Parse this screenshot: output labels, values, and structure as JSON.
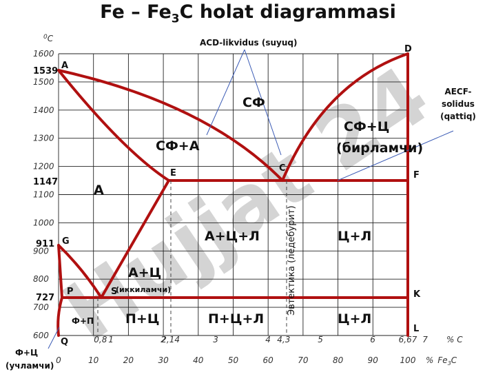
{
  "title": {
    "main": "Fe – Fe",
    "sub": "3",
    "rest": "C holat diagrammasi"
  },
  "temp_unit": {
    "sup": "0",
    "base": "C"
  },
  "watermark": "Hujjat 24",
  "y_ticks": [
    "1600",
    "1500",
    "1400",
    "1300",
    "1200",
    "1100",
    "1000",
    "900",
    "800",
    "700",
    "600"
  ],
  "y_special": [
    "1539",
    "1147",
    "911",
    "727"
  ],
  "c_axis": {
    "ticks": [
      "0,8",
      "1",
      "2",
      "2,14",
      "3",
      "4",
      "4,3",
      "5",
      "6",
      "6,67",
      "7"
    ],
    "unit": "% C"
  },
  "fe3c_axis": {
    "ticks": [
      "0",
      "10",
      "20",
      "30",
      "40",
      "50",
      "60",
      "70",
      "80",
      "90",
      "100"
    ],
    "unit_pct": "%",
    "unit_base": "Fe",
    "unit_sub": "3",
    "unit_rest": "C"
  },
  "points": {
    "A": "A",
    "D": "D",
    "E": "E",
    "C": "C",
    "F": "F",
    "G": "G",
    "P": "P",
    "S": "S",
    "K": "K",
    "L": "L",
    "Q": "Q"
  },
  "phases": {
    "sf": "СФ",
    "sf_a": "СФ+А",
    "sf_c": "СФ+Ц",
    "sf_c_sub": "(бирламчи)",
    "a": "А",
    "a_c_l": "А+Ц+Л",
    "c_l_top": "Ц+Л",
    "a_c": "А+Ц",
    "a_c_sub": "(иккиламчи)",
    "f_p": "Ф+П",
    "p_c": "П+Ц",
    "p_c_l": "П+Ц+Л",
    "c_l_bot": "Ц+Л"
  },
  "eutectic_label": "Эвтектика (ледебурит)",
  "annotations": {
    "acd": "ACD-likvidus (suyuq)",
    "aecf_1": "AECF-",
    "aecf_2": "solidus",
    "aecf_3": "(qattiq)",
    "fc_1": "Ф+Ц",
    "fc_2": "(учламчи)"
  }
}
